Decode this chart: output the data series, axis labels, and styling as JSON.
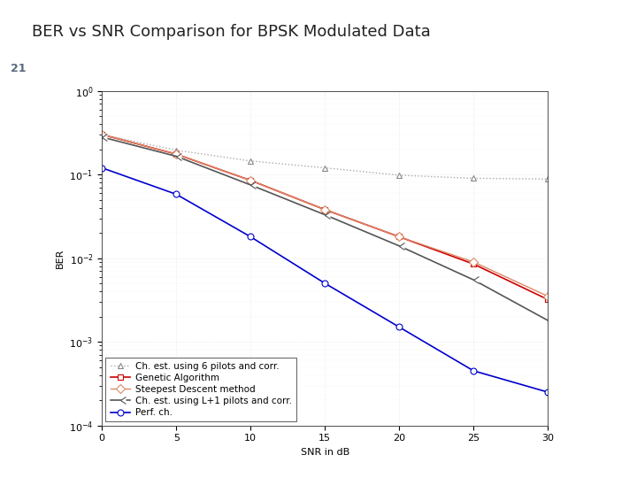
{
  "title": "BER vs SNR Comparison for BPSK Modulated Data",
  "slide_number": "21",
  "xlabel": "SNR in dB",
  "ylabel": "BER",
  "xlim": [
    0,
    30
  ],
  "ylim_log": [
    -4,
    0
  ],
  "snr": [
    0,
    5,
    10,
    15,
    20,
    25,
    30
  ],
  "series": [
    {
      "label": "Ch. est. using 6 pilots and corr.",
      "color": "#aaaaaa",
      "linestyle": "dotted",
      "marker": "^",
      "marker_facecolor": "white",
      "marker_edgecolor": "#888888",
      "linewidth": 1.0,
      "markersize": 5,
      "values": [
        0.3,
        0.195,
        0.145,
        0.12,
        0.098,
        0.09,
        0.088
      ]
    },
    {
      "label": "Genetic Algorithm",
      "color": "#cc0000",
      "linestyle": "solid",
      "marker": "s",
      "marker_facecolor": "white",
      "marker_edgecolor": "#cc0000",
      "linewidth": 1.2,
      "markersize": 5,
      "values": [
        0.3,
        0.175,
        0.085,
        0.038,
        0.018,
        0.0085,
        0.0032
      ]
    },
    {
      "label": "Steepest Descent method",
      "color": "#dd8866",
      "linestyle": "solid",
      "marker": "D",
      "marker_facecolor": "white",
      "marker_edgecolor": "#dd8866",
      "linewidth": 1.0,
      "markersize": 5,
      "values": [
        0.3,
        0.175,
        0.085,
        0.038,
        0.018,
        0.009,
        0.0035
      ]
    },
    {
      "label": "Ch. est. using L+1 pilots and corr.",
      "color": "#555555",
      "linestyle": "solid",
      "marker": "4",
      "marker_facecolor": "white",
      "marker_edgecolor": "#555555",
      "linewidth": 1.2,
      "markersize": 6,
      "values": [
        0.28,
        0.165,
        0.075,
        0.033,
        0.014,
        0.0055,
        0.0018
      ]
    },
    {
      "label": "Perf. ch.",
      "color": "#0000cc",
      "linestyle": "solid",
      "marker": "o",
      "marker_facecolor": "white",
      "marker_edgecolor": "#0000cc",
      "linewidth": 1.2,
      "markersize": 5,
      "values": [
        0.12,
        0.058,
        0.018,
        0.005,
        0.0015,
        0.00045,
        0.00025
      ]
    }
  ],
  "bg_color": "#ffffff",
  "slide_bar_color": "#b8c8d8",
  "slide_num_color": "#5a6a80",
  "title_fontsize": 13,
  "axis_fontsize": 8,
  "legend_fontsize": 7.5,
  "title_color": "#222222"
}
